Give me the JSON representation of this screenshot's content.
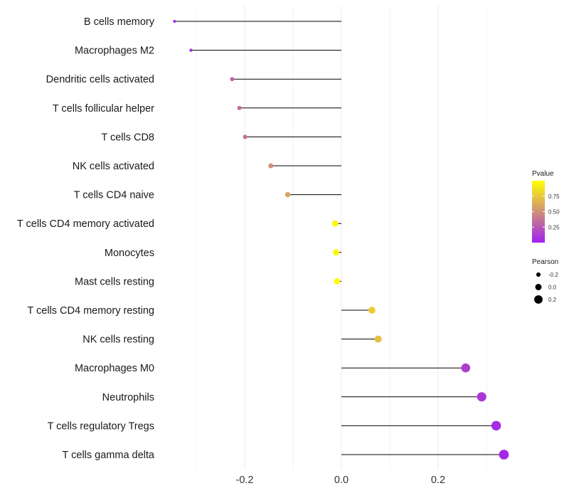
{
  "chart_data": {
    "type": "lollipop",
    "title": "",
    "xlabel": "",
    "ylabel": "",
    "xlim": [
      -0.35,
      0.35
    ],
    "x_ticks": [
      -0.2,
      0.0,
      0.2
    ],
    "x_tick_labels": [
      "-0.2",
      "0.0",
      "0.2"
    ],
    "grid": true,
    "categories": [
      "B cells memory",
      "Macrophages M2",
      "Dendritic cells activated",
      "T cells follicular helper",
      "T cells CD8",
      "NK cells activated",
      "T cells CD4 naive",
      "T cells CD4 memory activated",
      "Monocytes",
      "Mast cells resting",
      "T cells CD4 memory resting",
      "NK cells resting",
      "Macrophages M0",
      "Neutrophils",
      "T cells regulatory  Tregs ",
      "T cells gamma delta"
    ],
    "pearson": [
      -0.345,
      -0.311,
      -0.226,
      -0.211,
      -0.199,
      -0.146,
      -0.111,
      -0.013,
      -0.011,
      -0.009,
      0.063,
      0.076,
      0.257,
      0.29,
      0.32,
      0.336
    ],
    "pvalue": [
      0.04,
      0.08,
      0.3,
      0.34,
      0.37,
      0.5,
      0.6,
      0.97,
      0.97,
      0.98,
      0.77,
      0.72,
      0.14,
      0.1,
      0.06,
      0.04
    ],
    "legends": {
      "color": {
        "title": "Pvalue",
        "ticks": [
          0.25,
          0.5,
          0.75
        ],
        "tick_labels": [
          "0.25",
          "0.50",
          "0.75"
        ],
        "range": [
          0.0,
          1.0
        ],
        "low_color": "#a020f0",
        "high_color": "#ffff00"
      },
      "size": {
        "title": "Pearson",
        "values": [
          -0.2,
          0.0,
          0.2
        ],
        "labels": [
          "-0.2",
          "0.0",
          "0.2"
        ]
      }
    },
    "colors": {
      "segment": "#000000",
      "grid": "#ebebeb"
    }
  }
}
